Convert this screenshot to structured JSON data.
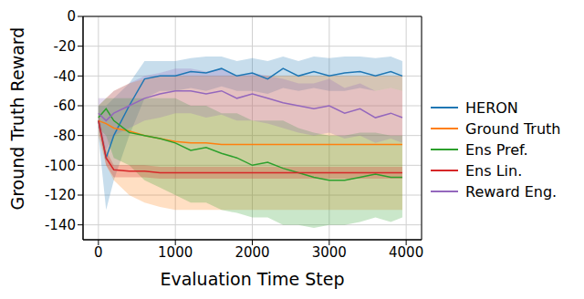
{
  "chart_data": {
    "type": "line",
    "xlabel": "Evaluation Time Step",
    "ylabel": "Ground Truth Reward",
    "x": [
      0,
      100,
      200,
      400,
      600,
      800,
      1000,
      1200,
      1400,
      1600,
      1800,
      2000,
      2200,
      2400,
      2600,
      2800,
      3000,
      3200,
      3400,
      3600,
      3800,
      3950
    ],
    "xlim": [
      -200,
      4200
    ],
    "xticks": [
      0,
      1000,
      2000,
      3000,
      4000
    ],
    "ylim": [
      -150,
      0
    ],
    "yticks": [
      -140,
      -120,
      -100,
      -80,
      -60,
      -40,
      -20,
      0
    ],
    "grid": true,
    "legend": "right",
    "series": [
      {
        "name": "HERON",
        "color": "#1f77b4",
        "values": [
          -70,
          -95,
          -80,
          -60,
          -42,
          -40,
          -40,
          -37,
          -38,
          -35,
          -40,
          -38,
          -42,
          -35,
          -40,
          -37,
          -40,
          -38,
          -37,
          -40,
          -37,
          -40
        ],
        "lower": [
          -80,
          -130,
          -110,
          -80,
          -55,
          -50,
          -50,
          -48,
          -50,
          -47,
          -50,
          -50,
          -52,
          -48,
          -50,
          -48,
          -50,
          -50,
          -48,
          -50,
          -48,
          -50
        ],
        "upper": [
          -60,
          -60,
          -55,
          -45,
          -30,
          -30,
          -30,
          -28,
          -27,
          -27,
          -30,
          -28,
          -30,
          -27,
          -30,
          -27,
          -28,
          -27,
          -27,
          -28,
          -27,
          -30
        ]
      },
      {
        "name": "Ground Truth",
        "color": "#ff7f0e",
        "values": [
          -70,
          -72,
          -75,
          -77,
          -80,
          -82,
          -84,
          -85,
          -85,
          -86,
          -86,
          -86,
          -86,
          -86,
          -86,
          -86,
          -86,
          -86,
          -86,
          -86,
          -86,
          -86
        ],
        "lower": [
          -80,
          -100,
          -110,
          -120,
          -125,
          -128,
          -130,
          -130,
          -130,
          -130,
          -130,
          -130,
          -130,
          -130,
          -130,
          -130,
          -130,
          -130,
          -130,
          -130,
          -130,
          -130
        ],
        "upper": [
          -60,
          -55,
          -50,
          -45,
          -42,
          -40,
          -40,
          -40,
          -40,
          -40,
          -40,
          -40,
          -40,
          -40,
          -40,
          -40,
          -40,
          -40,
          -40,
          -40,
          -40,
          -40
        ]
      },
      {
        "name": "Ens Pref.",
        "color": "#2ca02c",
        "values": [
          -68,
          -62,
          -70,
          -78,
          -80,
          -82,
          -85,
          -90,
          -88,
          -92,
          -95,
          -100,
          -98,
          -102,
          -105,
          -108,
          -110,
          -110,
          -108,
          -106,
          -108,
          -108
        ],
        "lower": [
          -75,
          -80,
          -95,
          -100,
          -110,
          -115,
          -120,
          -125,
          -125,
          -130,
          -132,
          -135,
          -135,
          -140,
          -140,
          -142,
          -140,
          -140,
          -138,
          -135,
          -138,
          -135
        ],
        "upper": [
          -60,
          -55,
          -55,
          -55,
          -55,
          -55,
          -55,
          -60,
          -60,
          -65,
          -65,
          -70,
          -70,
          -70,
          -75,
          -78,
          -80,
          -80,
          -78,
          -78,
          -80,
          -80
        ]
      },
      {
        "name": "Ens Lin.",
        "color": "#d62728",
        "values": [
          -70,
          -95,
          -103,
          -104,
          -104,
          -105,
          -105,
          -105,
          -105,
          -105,
          -105,
          -105,
          -105,
          -105,
          -105,
          -105,
          -105,
          -105,
          -105,
          -105,
          -105,
          -105
        ],
        "lower": [
          -75,
          -100,
          -108,
          -108,
          -108,
          -109,
          -109,
          -109,
          -109,
          -109,
          -109,
          -109,
          -109,
          -109,
          -109,
          -109,
          -109,
          -109,
          -109,
          -109,
          -109,
          -109
        ],
        "upper": [
          -65,
          -90,
          -100,
          -100,
          -100,
          -101,
          -101,
          -101,
          -101,
          -101,
          -101,
          -101,
          -101,
          -101,
          -101,
          -101,
          -101,
          -101,
          -101,
          -101,
          -101,
          -101
        ]
      },
      {
        "name": "Reward Eng.",
        "color": "#9467bd",
        "values": [
          -65,
          -70,
          -65,
          -60,
          -55,
          -52,
          -50,
          -50,
          -52,
          -50,
          -55,
          -52,
          -55,
          -58,
          -60,
          -62,
          -60,
          -65,
          -62,
          -68,
          -65,
          -68
        ],
        "lower": [
          -75,
          -90,
          -80,
          -75,
          -70,
          -68,
          -65,
          -65,
          -68,
          -66,
          -70,
          -70,
          -72,
          -75,
          -78,
          -80,
          -78,
          -82,
          -80,
          -85,
          -82,
          -85
        ],
        "upper": [
          -55,
          -55,
          -50,
          -45,
          -40,
          -38,
          -35,
          -35,
          -37,
          -35,
          -40,
          -38,
          -40,
          -42,
          -45,
          -45,
          -42,
          -48,
          -45,
          -50,
          -48,
          -50
        ]
      }
    ]
  }
}
